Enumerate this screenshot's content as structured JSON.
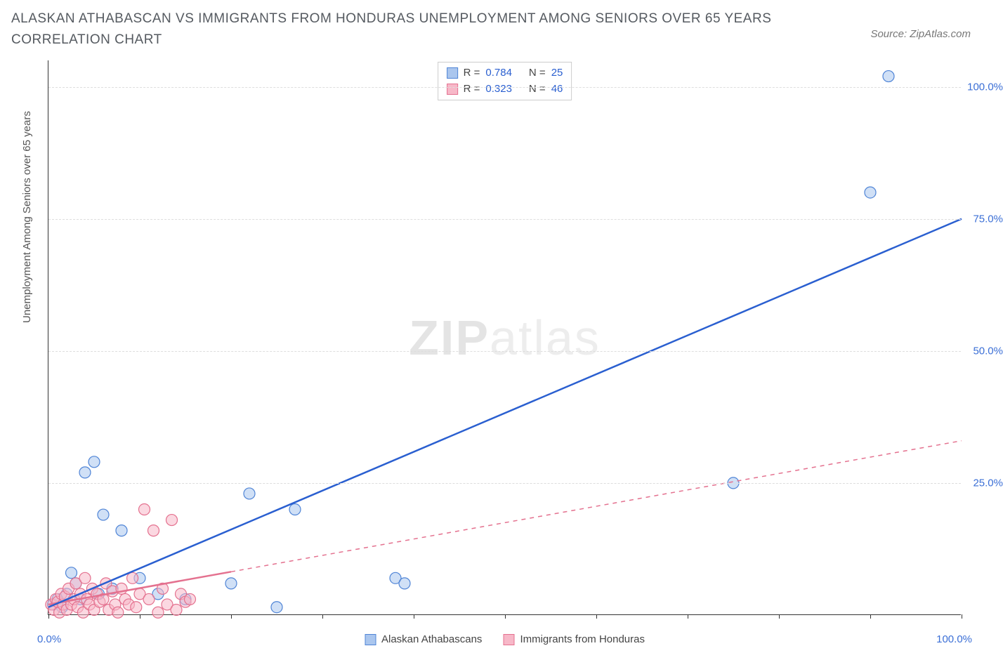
{
  "title": "ALASKAN ATHABASCAN VS IMMIGRANTS FROM HONDURAS UNEMPLOYMENT AMONG SENIORS OVER 65 YEARS CORRELATION CHART",
  "source": "Source: ZipAtlas.com",
  "watermark_a": "ZIP",
  "watermark_b": "atlas",
  "y_axis_title": "Unemployment Among Seniors over 65 years",
  "chart": {
    "type": "scatter",
    "xlim": [
      0,
      100
    ],
    "ylim": [
      0,
      105
    ],
    "x_tick_count": 11,
    "y_ticks": [
      25,
      50,
      75,
      100
    ],
    "x_label_min": "0.0%",
    "x_label_max": "100.0%",
    "y_labels": [
      "25.0%",
      "50.0%",
      "75.0%",
      "100.0%"
    ],
    "background_color": "#ffffff",
    "grid_color": "#dddddd",
    "marker_radius": 8,
    "marker_stroke_width": 1.2,
    "trend_line_width": 2.5,
    "series": [
      {
        "name": "Alaskan Athabascans",
        "r": "0.784",
        "n": "25",
        "fill": "#aac6ee",
        "stroke": "#4f84d6",
        "fill_opacity": 0.55,
        "trend": {
          "x1": 0,
          "y1": 1.5,
          "x2": 100,
          "y2": 75,
          "solid_until_x": 100,
          "dashed": false,
          "color": "#2a5fd0"
        },
        "points": [
          [
            0.5,
            2
          ],
          [
            1,
            3
          ],
          [
            1.5,
            1.5
          ],
          [
            2,
            4
          ],
          [
            2.5,
            8
          ],
          [
            3,
            6
          ],
          [
            3.5,
            3
          ],
          [
            4,
            27
          ],
          [
            5,
            29
          ],
          [
            5.5,
            4
          ],
          [
            6,
            19
          ],
          [
            7,
            5
          ],
          [
            8,
            16
          ],
          [
            10,
            7
          ],
          [
            12,
            4
          ],
          [
            15,
            3
          ],
          [
            20,
            6
          ],
          [
            22,
            23
          ],
          [
            25,
            1.5
          ],
          [
            27,
            20
          ],
          [
            38,
            7
          ],
          [
            39,
            6
          ],
          [
            75,
            25
          ],
          [
            90,
            80
          ],
          [
            92,
            102
          ]
        ]
      },
      {
        "name": "Immigrants from Honduras",
        "r": "0.323",
        "n": "46",
        "fill": "#f7b8c8",
        "stroke": "#e4718f",
        "fill_opacity": 0.55,
        "trend": {
          "x1": 0,
          "y1": 2,
          "x2": 100,
          "y2": 33,
          "solid_until_x": 20,
          "dashed": true,
          "color": "#e4718f"
        },
        "points": [
          [
            0.3,
            2
          ],
          [
            0.6,
            1
          ],
          [
            0.8,
            3
          ],
          [
            1,
            2.5
          ],
          [
            1.2,
            0.5
          ],
          [
            1.4,
            4
          ],
          [
            1.6,
            2
          ],
          [
            1.8,
            3.5
          ],
          [
            2,
            1
          ],
          [
            2.2,
            5
          ],
          [
            2.5,
            2
          ],
          [
            2.8,
            3
          ],
          [
            3,
            6
          ],
          [
            3.2,
            1.5
          ],
          [
            3.5,
            4
          ],
          [
            3.8,
            0.5
          ],
          [
            4,
            7
          ],
          [
            4.2,
            3
          ],
          [
            4.5,
            2
          ],
          [
            4.8,
            5
          ],
          [
            5,
            1
          ],
          [
            5.3,
            4
          ],
          [
            5.6,
            2.5
          ],
          [
            6,
            3
          ],
          [
            6.3,
            6
          ],
          [
            6.6,
            1
          ],
          [
            7,
            4.5
          ],
          [
            7.3,
            2
          ],
          [
            7.6,
            0.5
          ],
          [
            8,
            5
          ],
          [
            8.4,
            3
          ],
          [
            8.8,
            2
          ],
          [
            9.2,
            7
          ],
          [
            9.6,
            1.5
          ],
          [
            10,
            4
          ],
          [
            10.5,
            20
          ],
          [
            11,
            3
          ],
          [
            11.5,
            16
          ],
          [
            12,
            0.5
          ],
          [
            12.5,
            5
          ],
          [
            13,
            2
          ],
          [
            13.5,
            18
          ],
          [
            14,
            1
          ],
          [
            14.5,
            4
          ],
          [
            15,
            2.5
          ],
          [
            15.5,
            3
          ]
        ]
      }
    ]
  },
  "legend_bottom": [
    "Alaskan Athabascans",
    "Immigrants from Honduras"
  ],
  "legend_top_labels": {
    "r": "R =",
    "n": "N ="
  }
}
